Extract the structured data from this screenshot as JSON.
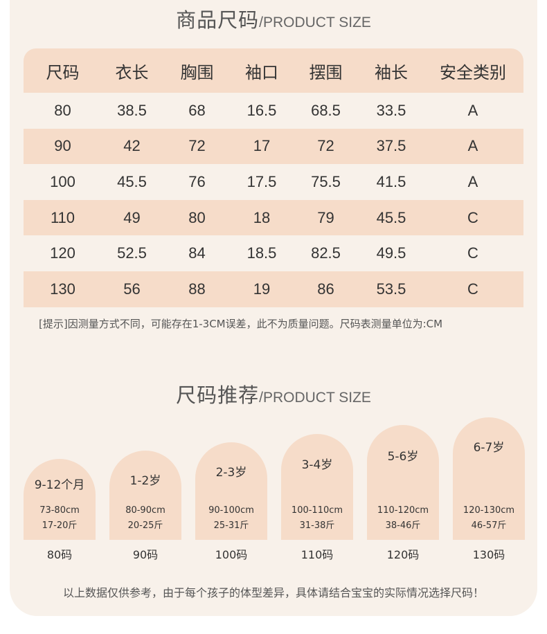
{
  "size_section": {
    "title_cn": "商品尺码",
    "title_en": "/PRODUCT SIZE",
    "columns": [
      "尺码",
      "衣长",
      "胸围",
      "袖口",
      "摆围",
      "袖长",
      "安全类别"
    ],
    "rows": [
      [
        "80",
        "38.5",
        "68",
        "16.5",
        "68.5",
        "33.5",
        "A"
      ],
      [
        "90",
        "42",
        "72",
        "17",
        "72",
        "37.5",
        "A"
      ],
      [
        "100",
        "45.5",
        "76",
        "17.5",
        "75.5",
        "41.5",
        "A"
      ],
      [
        "110",
        "49",
        "80",
        "18",
        "79",
        "45.5",
        "C"
      ],
      [
        "120",
        "52.5",
        "84",
        "18.5",
        "82.5",
        "49.5",
        "C"
      ],
      [
        "130",
        "56",
        "88",
        "19",
        "86",
        "53.5",
        "C"
      ]
    ],
    "note": "[提示]因测量方式不同，可能存在1-3CM误差，此不为质量问题。尺码表测量单位为:CM"
  },
  "recommend_section": {
    "title_cn": "尺码推荐",
    "title_en": "/PRODUCT SIZE",
    "items": [
      {
        "age": "9-12个月",
        "height": "73-80cm",
        "weight": "17-20斤",
        "size": "80码"
      },
      {
        "age": "1-2岁",
        "height": "80-90cm",
        "weight": "20-25斤",
        "size": "90码"
      },
      {
        "age": "2-3岁",
        "height": "90-100cm",
        "weight": "25-31斤",
        "size": "100码"
      },
      {
        "age": "3-4岁",
        "height": "100-110cm",
        "weight": "31-38斤",
        "size": "110码"
      },
      {
        "age": "5-6岁",
        "height": "110-120cm",
        "weight": "38-46斤",
        "size": "120码"
      },
      {
        "age": "6-7岁",
        "height": "120-130cm",
        "weight": "46-57斤",
        "size": "130码"
      }
    ],
    "footer": "以上数据仅供参考，由于每个孩子的体型差异，具体请结合宝宝的实际情况选择尺码！"
  },
  "colors": {
    "background": "#f8f1ea",
    "accent": "#f6dcc9",
    "text": "#333333"
  }
}
